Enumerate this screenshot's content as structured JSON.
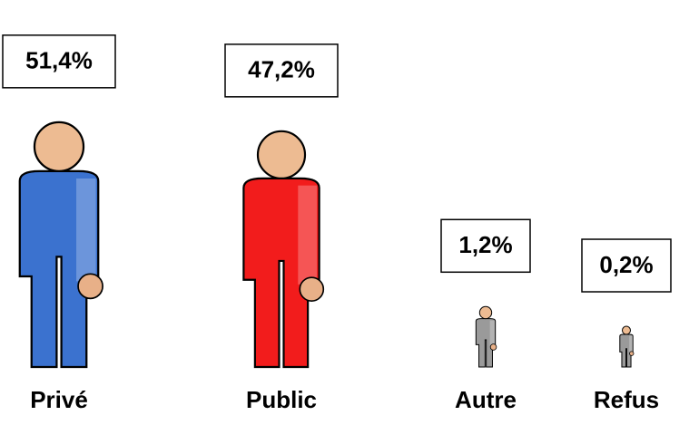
{
  "chart_data": {
    "type": "pictograph",
    "categories": [
      "Privé",
      "Public",
      "Autre",
      "Refus"
    ],
    "values": [
      51.4,
      47.2,
      1.2,
      0.2
    ],
    "value_labels": [
      "51,4%",
      "47,2%",
      "1,2%",
      "0,2%"
    ],
    "colors": [
      "#3b72cf",
      "#f21c1c",
      "#9a9a9a",
      "#9a9a9a"
    ]
  }
}
